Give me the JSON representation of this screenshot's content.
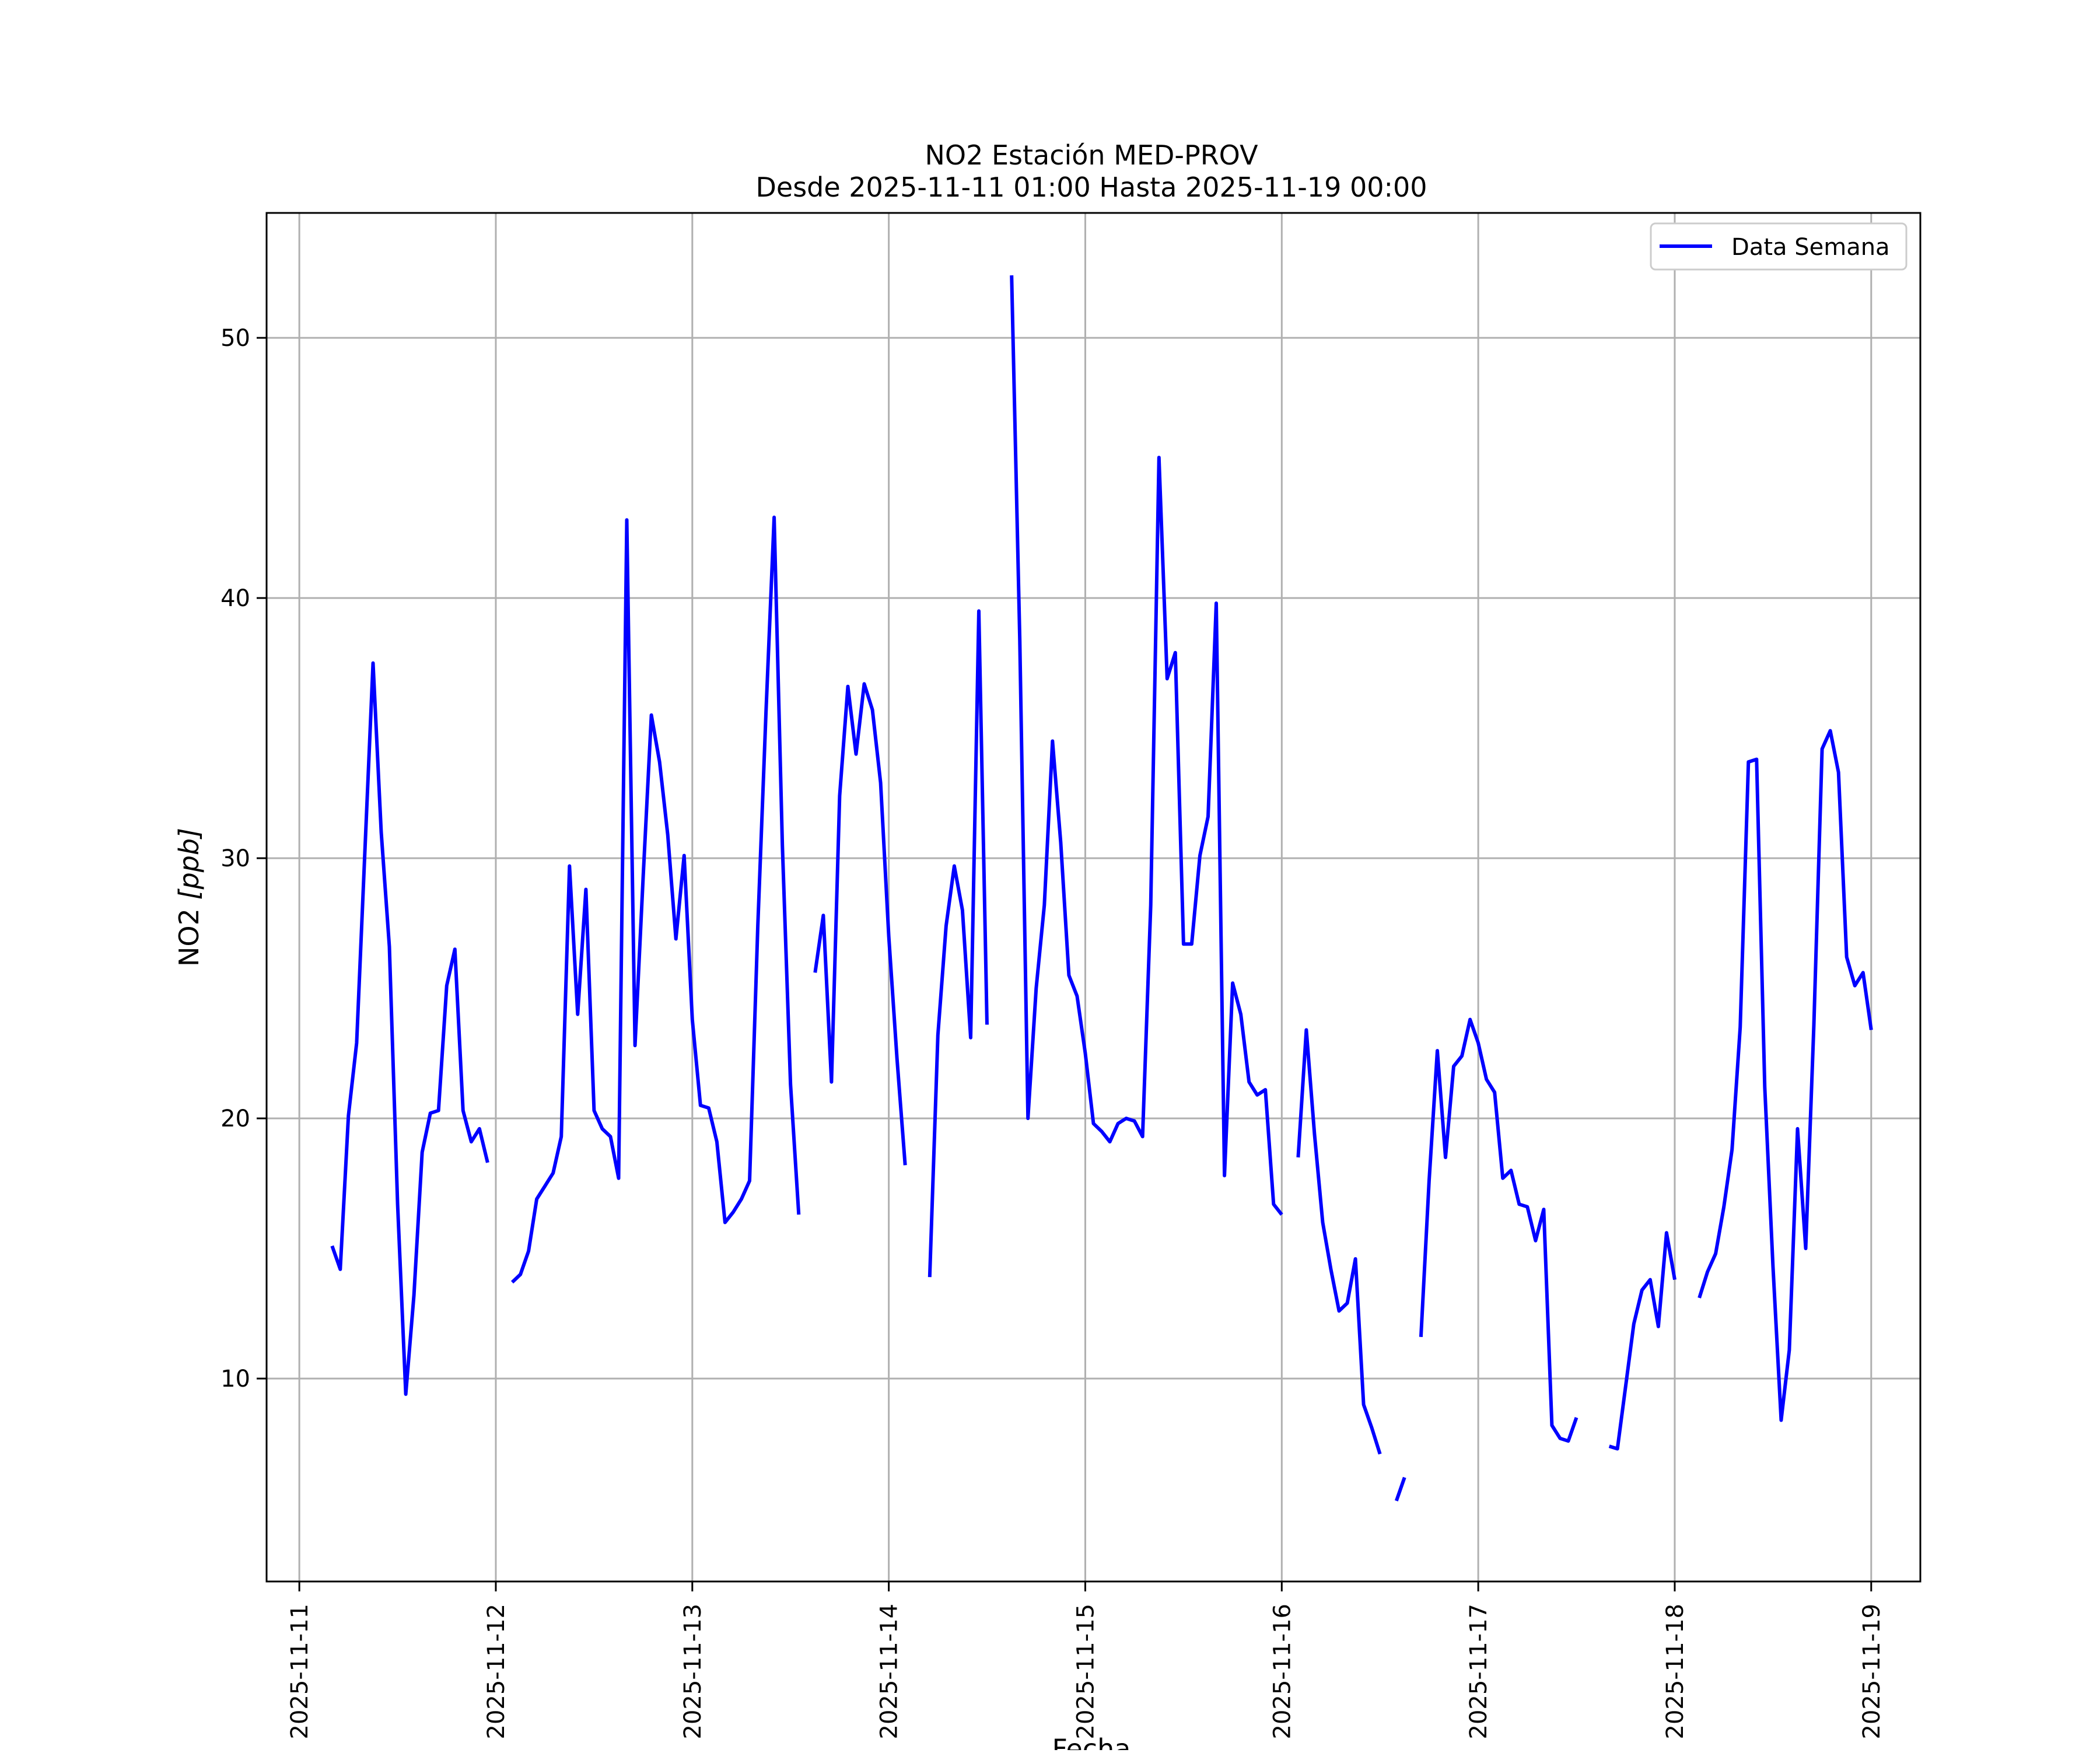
{
  "chart_data": {
    "type": "line",
    "title": "NO2 Estación MED-PROV",
    "subtitle": "Desde 2025-11-11 01:00 Hasta 2025-11-19 00:00",
    "xlabel": "Fecha",
    "ylabel_main": "NO2 ",
    "ylabel_unit": "[ppb]",
    "xlim": [
      "2025-11-10 20:00",
      "2025-11-19 06:00"
    ],
    "ylim": [
      2.2,
      54.8
    ],
    "x_ticks": [
      "2025-11-11",
      "2025-11-12",
      "2025-11-13",
      "2025-11-14",
      "2025-11-15",
      "2025-11-16",
      "2025-11-17",
      "2025-11-18",
      "2025-11-19"
    ],
    "y_ticks": [
      10,
      20,
      30,
      40,
      50
    ],
    "grid": true,
    "legend_position": "top-right",
    "series": [
      {
        "name": "Data Semana",
        "color": "#0000ff",
        "segments": [
          {
            "start": "2025-11-11 04:00",
            "values": [
              15.1,
              14.2,
              20.1,
              22.9,
              30.2,
              37.5,
              31.0,
              26.6,
              16.7,
              9.4,
              13.2,
              18.7,
              20.2,
              20.3,
              25.1,
              26.5,
              20.3,
              19.1,
              19.6,
              18.3
            ]
          },
          {
            "start": "2025-11-12 02:00",
            "values": [
              13.7,
              14.0,
              14.9,
              16.9,
              17.4,
              17.9,
              19.3,
              29.7,
              24.0,
              28.8,
              20.3,
              19.6,
              19.3,
              17.7,
              43.0,
              22.8,
              29.3,
              35.5,
              33.7,
              30.9,
              26.9,
              30.1,
              23.8,
              20.5,
              20.4,
              19.1,
              16.0,
              16.4,
              16.9,
              17.6,
              27.4,
              35.6,
              43.1,
              30.5,
              21.3,
              16.3
            ]
          },
          {
            "start": "2025-11-13 15:00",
            "values": [
              25.6,
              27.8,
              21.4,
              32.4,
              36.6,
              34.0,
              36.7,
              35.7,
              32.9,
              27.0,
              22.3,
              18.2
            ]
          },
          {
            "start": "2025-11-14 05:00",
            "values": [
              13.9,
              23.2,
              27.4,
              29.7,
              28.0,
              23.1,
              39.5,
              23.6
            ]
          },
          {
            "start": "2025-11-14 15:00",
            "values": [
              52.4,
              38.4,
              20.0,
              25.0,
              28.2,
              34.5,
              30.6,
              25.5,
              24.7,
              22.5,
              19.8,
              19.5,
              19.1,
              19.8,
              20.0,
              19.9,
              19.3,
              28.2,
              45.4,
              36.9,
              37.9,
              26.7,
              26.7,
              30.1,
              31.6,
              39.8,
              17.8,
              25.2,
              24.0,
              21.4,
              20.9,
              21.1,
              16.7,
              16.3
            ]
          },
          {
            "start": "2025-11-16 02:00",
            "values": [
              18.5,
              23.4,
              19.4,
              16.0,
              14.2,
              12.6,
              12.9,
              14.6,
              9.0,
              8.1,
              7.1
            ]
          },
          {
            "start": "2025-11-16 14:00",
            "values": [
              5.3,
              6.2
            ]
          },
          {
            "start": "2025-11-16 17:00",
            "values": [
              11.6,
              17.6,
              22.6,
              18.5,
              22.0,
              22.4,
              23.8,
              22.9,
              21.5,
              21.0,
              17.7,
              18.0,
              16.7,
              16.6,
              15.3,
              16.5,
              8.2,
              7.7,
              7.6,
              8.5
            ]
          },
          {
            "start": "2025-11-17 16:00",
            "values": [
              7.4,
              7.3,
              9.7,
              12.1,
              13.4,
              13.8,
              12.0,
              15.6,
              13.8
            ]
          },
          {
            "start": "2025-11-18 03:00",
            "values": [
              13.1,
              14.1,
              14.8,
              16.6,
              18.8,
              23.5,
              33.7,
              33.8,
              21.2,
              14.3,
              8.4,
              11.1,
              19.6,
              15.0,
              23.6,
              34.2,
              34.9,
              33.3,
              26.2,
              25.1,
              25.6,
              23.4
            ]
          }
        ]
      }
    ]
  }
}
